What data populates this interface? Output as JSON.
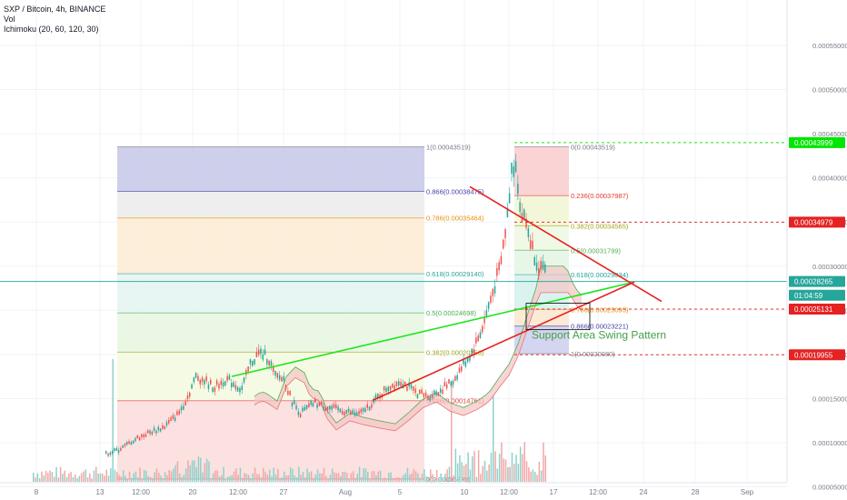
{
  "legend": {
    "title": "SXP / Bitcoin, 4h, BINANCE",
    "vol": "Vol",
    "ichimoku": "Ichimoku (20, 60, 120, 30)"
  },
  "colors": {
    "up": "#26a69a",
    "down": "#ef5350",
    "green_line": "#1ee51e",
    "red_line": "#e52222",
    "cloud_line": "#4caf50",
    "fib1": "#7e80c9",
    "fib0": "#e57373"
  },
  "chart_data": {
    "type": "candlestick",
    "x_ticks": [
      "8",
      "13",
      "12:00",
      "20",
      "12:00",
      "27",
      "Aug",
      "5",
      "10",
      "12:00",
      "17",
      "12:00",
      "24",
      "28",
      "Sep"
    ],
    "y_axis": {
      "ylim": [
        4e-05,
        0.00056
      ],
      "ticks": [
        "0.00005000",
        "0.00010000",
        "0.00015000",
        "0.00020000",
        "0.00025000",
        "0.00030000",
        "0.00035000",
        "0.00040000",
        "0.00045000",
        "0.00050000",
        "0.00055000"
      ]
    },
    "price_labels": [
      {
        "text": "0.00043999",
        "value": 0.00043999,
        "color": "#00e600"
      },
      {
        "text": "0.00034979",
        "value": 0.00034979,
        "color": "#e52222"
      },
      {
        "text": "0.00028265",
        "value": 0.00028265,
        "color": "#26a69a"
      },
      {
        "text": "01:04:59",
        "value": 0.000267,
        "color": "#26a69a"
      },
      {
        "text": "0.00025131",
        "value": 0.00025131,
        "color": "#e52222"
      },
      {
        "text": "0.00019955",
        "value": 0.00019955,
        "color": "#e52222"
      }
    ],
    "fib_retracement_1": {
      "levels": [
        {
          "text": "1(0.00043519)",
          "value": 0.00043519,
          "color": "#787b86"
        },
        {
          "text": "0.866(0.00038475)",
          "value": 0.00038475,
          "color": "#3f3fa8"
        },
        {
          "text": "0.786(0.00035464)",
          "value": 0.00035464,
          "color": "#e6900a"
        },
        {
          "text": "0.618(0.00029140)",
          "value": 0.0002914,
          "color": "#26a69a"
        },
        {
          "text": "0.5(0.00024698)",
          "value": 0.00024698,
          "color": "#4caf50"
        },
        {
          "text": "0.382(0.00020256)",
          "value": 0.00020256,
          "color": "#a3a31a"
        },
        {
          "text": "0.236(0.00014761)",
          "value": 0.00014761,
          "color": "#e53935"
        },
        {
          "text": "0(0.00005875)",
          "value": 5.875e-05,
          "color": "#787b86"
        }
      ]
    },
    "fib_retracement_2": {
      "levels": [
        {
          "text": "0(0.00043519)",
          "value": 0.00043519,
          "color": "#787b86"
        },
        {
          "text": "0.236(0.00037987)",
          "value": 0.00037987,
          "color": "#e53935"
        },
        {
          "text": "0.382(0.00034565)",
          "value": 0.00034565,
          "color": "#a3a31a"
        },
        {
          "text": "0.5(0.00031799)",
          "value": 0.00031799,
          "color": "#4caf50"
        },
        {
          "text": "0.618(0.00029034)",
          "value": 0.00029034,
          "color": "#26a69a"
        },
        {
          "text": "0.786(0.00025095)",
          "value": 0.00025095,
          "color": "#e6900a"
        },
        {
          "text": "0.866(0.00023221)",
          "value": 0.00023221,
          "color": "#3f3fa8"
        },
        {
          "text": "1(0.00020080)",
          "value": 0.0002008,
          "color": "#787b86"
        }
      ]
    },
    "annotation": "Support Area Swing Pattern"
  }
}
